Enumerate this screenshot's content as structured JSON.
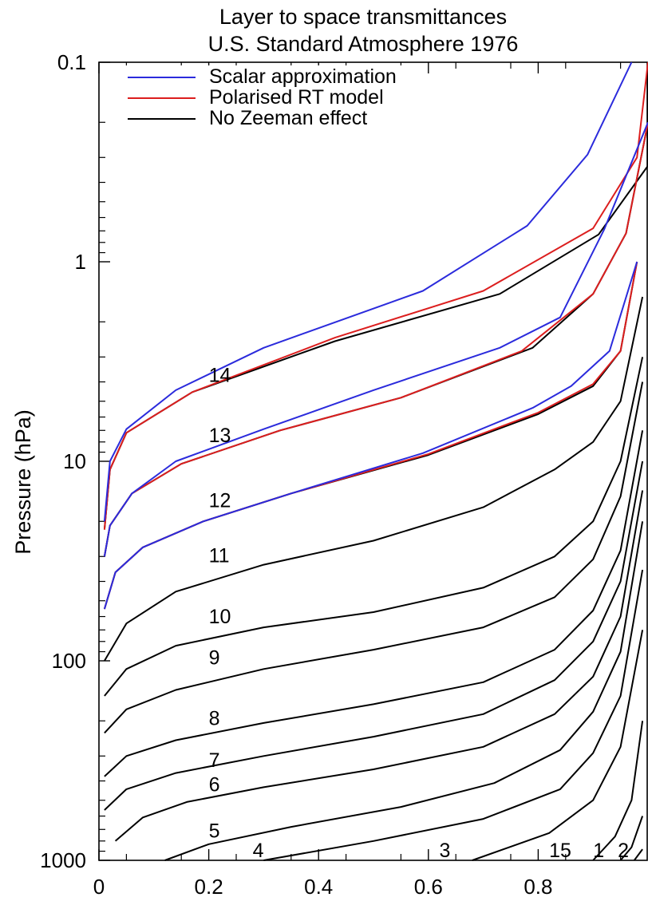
{
  "chart_data": {
    "type": "line",
    "title": "Layer to space transmittances",
    "subtitle": "U.S. Standard Atmosphere 1976",
    "xlabel": "",
    "ylabel": "Pressure (hPa)",
    "xlim": [
      0,
      1
    ],
    "ylim": [
      1000,
      0.1
    ],
    "y_scale": "log",
    "y_reversed": true,
    "x_ticks": [
      {
        "value": 0,
        "label": "0"
      },
      {
        "value": 0.2,
        "label": "0.2"
      },
      {
        "value": 0.4,
        "label": "0.4"
      },
      {
        "value": 0.6,
        "label": "0.6"
      },
      {
        "value": 0.8,
        "label": "0.8"
      }
    ],
    "y_ticks": [
      {
        "value": 0.1,
        "label": "0.1"
      },
      {
        "value": 1,
        "label": "1"
      },
      {
        "value": 10,
        "label": "10"
      },
      {
        "value": 100,
        "label": "100"
      },
      {
        "value": 1000,
        "label": "1000"
      }
    ],
    "legend": {
      "placement": "top-left",
      "entries": [
        {
          "name": "Scalar approximation",
          "color": "#2b2bdc"
        },
        {
          "name": "Polarised RT model",
          "color": "#dc1e1e"
        },
        {
          "name": "No Zeeman effect",
          "color": "#000000"
        }
      ]
    },
    "series_colors": {
      "scalar": "#2b2bdc",
      "polarised": "#dc1e1e",
      "none": "#000000"
    },
    "series": [
      {
        "channel": "14",
        "label_at": [
          0.2,
          4.0
        ],
        "curves": {
          "scalar": [
            [
              0.01,
              20
            ],
            [
              0.02,
              10
            ],
            [
              0.05,
              6.9
            ],
            [
              0.14,
              4.4
            ],
            [
              0.3,
              2.7
            ],
            [
              0.59,
              1.4
            ],
            [
              0.78,
              0.66
            ],
            [
              0.89,
              0.29
            ],
            [
              0.97,
              0.1
            ]
          ],
          "polarised": [
            [
              0.01,
              22
            ],
            [
              0.02,
              11
            ],
            [
              0.05,
              7.2
            ],
            [
              0.17,
              4.5
            ],
            [
              0.43,
              2.4
            ],
            [
              0.7,
              1.4
            ],
            [
              0.9,
              0.68
            ],
            [
              0.98,
              0.3
            ],
            [
              1.0,
              0.1
            ]
          ],
          "none": [
            [
              0.01,
              22
            ],
            [
              0.02,
              11
            ],
            [
              0.05,
              7.2
            ],
            [
              0.17,
              4.5
            ],
            [
              0.43,
              2.5
            ],
            [
              0.73,
              1.45
            ],
            [
              0.91,
              0.73
            ],
            [
              1.0,
              0.33
            ],
            [
              1.0,
              0.1
            ]
          ]
        }
      },
      {
        "channel": "13",
        "label_at": [
          0.2,
          8.0
        ],
        "curves": {
          "scalar": [
            [
              0.01,
              30
            ],
            [
              0.02,
              21
            ],
            [
              0.06,
              14.5
            ],
            [
              0.14,
              10
            ],
            [
              0.3,
              6.9
            ],
            [
              0.5,
              4.4
            ],
            [
              0.73,
              2.7
            ],
            [
              0.84,
              1.9
            ],
            [
              0.92,
              0.69
            ],
            [
              1.0,
              0.2
            ]
          ],
          "polarised": [
            [
              0.01,
              30
            ],
            [
              0.02,
              21
            ],
            [
              0.06,
              14.5
            ],
            [
              0.15,
              10.3
            ],
            [
              0.33,
              7.0
            ],
            [
              0.55,
              4.8
            ],
            [
              0.77,
              2.8
            ],
            [
              0.9,
              1.45
            ],
            [
              0.96,
              0.72
            ],
            [
              1.0,
              0.2
            ]
          ],
          "none": [
            [
              0.01,
              30
            ],
            [
              0.02,
              21
            ],
            [
              0.06,
              14.5
            ],
            [
              0.15,
              10.3
            ],
            [
              0.33,
              7.0
            ],
            [
              0.55,
              4.8
            ],
            [
              0.79,
              2.7
            ],
            [
              0.9,
              1.45
            ],
            [
              0.96,
              0.72
            ],
            [
              1.0,
              0.2
            ]
          ]
        }
      },
      {
        "channel": "12",
        "label_at": [
          0.2,
          17.0
        ],
        "curves": {
          "scalar": [
            [
              0.01,
              55
            ],
            [
              0.03,
              36
            ],
            [
              0.08,
              27
            ],
            [
              0.19,
              20
            ],
            [
              0.35,
              14.5
            ],
            [
              0.59,
              9.1
            ],
            [
              0.79,
              5.4
            ],
            [
              0.86,
              4.2
            ],
            [
              0.93,
              2.8
            ],
            [
              0.98,
              1.0
            ]
          ],
          "polarised": [
            [
              0.01,
              55
            ],
            [
              0.03,
              36
            ],
            [
              0.08,
              27
            ],
            [
              0.19,
              20
            ],
            [
              0.35,
              14.5
            ],
            [
              0.6,
              9.2
            ],
            [
              0.8,
              5.7
            ],
            [
              0.9,
              4.1
            ],
            [
              0.95,
              2.8
            ],
            [
              0.98,
              1.0
            ]
          ],
          "none": [
            [
              0.01,
              55
            ],
            [
              0.03,
              36
            ],
            [
              0.08,
              27
            ],
            [
              0.19,
              20
            ],
            [
              0.35,
              14.5
            ],
            [
              0.6,
              9.3
            ],
            [
              0.8,
              5.8
            ],
            [
              0.9,
              4.2
            ],
            [
              0.95,
              2.8
            ],
            [
              0.98,
              1.0
            ]
          ]
        }
      },
      {
        "channel": "11",
        "label_at": [
          0.2,
          32.0
        ],
        "curves": {
          "none": [
            [
              0.01,
              100
            ],
            [
              0.05,
              65
            ],
            [
              0.14,
              45
            ],
            [
              0.3,
              33
            ],
            [
              0.5,
              25
            ],
            [
              0.7,
              17
            ],
            [
              0.83,
              11
            ],
            [
              0.9,
              8
            ],
            [
              0.95,
              5
            ],
            [
              0.99,
              1.5
            ]
          ]
        }
      },
      {
        "channel": "10",
        "label_at": [
          0.2,
          65.0
        ],
        "curves": {
          "none": [
            [
              0.01,
              150
            ],
            [
              0.05,
              110
            ],
            [
              0.14,
              84
            ],
            [
              0.3,
              68
            ],
            [
              0.5,
              57
            ],
            [
              0.7,
              43
            ],
            [
              0.83,
              30
            ],
            [
              0.9,
              20
            ],
            [
              0.95,
              10
            ],
            [
              0.99,
              3
            ]
          ]
        }
      },
      {
        "channel": "9",
        "label_at": [
          0.2,
          104.0
        ],
        "curves": {
          "none": [
            [
              0.01,
              230
            ],
            [
              0.05,
              175
            ],
            [
              0.14,
              140
            ],
            [
              0.3,
              110
            ],
            [
              0.5,
              88
            ],
            [
              0.7,
              68
            ],
            [
              0.83,
              48
            ],
            [
              0.9,
              31
            ],
            [
              0.95,
              15
            ],
            [
              0.99,
              4
            ]
          ]
        }
      },
      {
        "channel": "8",
        "label_at": [
          0.2,
          210.0
        ],
        "curves": {
          "none": [
            [
              0.01,
              380
            ],
            [
              0.05,
              300
            ],
            [
              0.14,
              250
            ],
            [
              0.3,
              205
            ],
            [
              0.5,
              165
            ],
            [
              0.7,
              128
            ],
            [
              0.83,
              88
            ],
            [
              0.9,
              56
            ],
            [
              0.95,
              28
            ],
            [
              0.99,
              7
            ]
          ]
        }
      },
      {
        "channel": "7",
        "label_at": [
          0.2,
          340.0
        ],
        "curves": {
          "none": [
            [
              0.01,
              560
            ],
            [
              0.05,
              440
            ],
            [
              0.14,
              365
            ],
            [
              0.3,
              300
            ],
            [
              0.5,
              240
            ],
            [
              0.7,
              185
            ],
            [
              0.83,
              125
            ],
            [
              0.9,
              80
            ],
            [
              0.95,
              40
            ],
            [
              0.99,
              10
            ]
          ]
        }
      },
      {
        "channel": "6",
        "label_at": [
          0.2,
          450.0
        ],
        "curves": {
          "none": [
            [
              0.03,
              800
            ],
            [
              0.08,
              610
            ],
            [
              0.16,
              510
            ],
            [
              0.3,
              430
            ],
            [
              0.5,
              350
            ],
            [
              0.7,
              270
            ],
            [
              0.83,
              185
            ],
            [
              0.9,
              120
            ],
            [
              0.95,
              60
            ],
            [
              0.99,
              14
            ]
          ]
        }
      },
      {
        "channel": "5",
        "label_at": [
          0.2,
          770.0
        ],
        "curves": {
          "none": [
            [
              0.12,
              1000
            ],
            [
              0.2,
              830
            ],
            [
              0.35,
              680
            ],
            [
              0.55,
              540
            ],
            [
              0.72,
              410
            ],
            [
              0.84,
              280
            ],
            [
              0.9,
              180
            ],
            [
              0.95,
              90
            ],
            [
              0.99,
              20
            ]
          ]
        }
      },
      {
        "channel": "4",
        "label_at": [
          0.28,
          1000.0
        ],
        "curves": {
          "none": [
            [
              0.3,
              1000
            ],
            [
              0.5,
              800
            ],
            [
              0.7,
              620
            ],
            [
              0.84,
              440
            ],
            [
              0.9,
              290
            ],
            [
              0.95,
              150
            ],
            [
              0.99,
              35
            ]
          ]
        }
      },
      {
        "channel": "3",
        "label_at": [
          0.62,
          1000.0
        ],
        "curves": {
          "none": [
            [
              0.68,
              1000
            ],
            [
              0.82,
              730
            ],
            [
              0.9,
              500
            ],
            [
              0.95,
              270
            ],
            [
              0.99,
              70
            ]
          ]
        }
      },
      {
        "channel": "15",
        "label_at": [
          0.82,
          1000.0
        ],
        "curves": {
          "none": [
            [
              0.9,
              1000
            ],
            [
              0.94,
              760
            ],
            [
              0.97,
              500
            ],
            [
              0.99,
              200
            ]
          ]
        }
      },
      {
        "channel": "1",
        "label_at": [
          0.9,
          1000.0
        ],
        "curves": {
          "none": [
            [
              0.95,
              1000
            ],
            [
              0.97,
              860
            ],
            [
              0.99,
              600
            ]
          ]
        }
      },
      {
        "channel": "2",
        "label_at": [
          0.945,
          1000.0
        ],
        "curves": {
          "none": [
            [
              0.975,
              1000
            ],
            [
              0.99,
              880
            ]
          ]
        }
      }
    ]
  }
}
